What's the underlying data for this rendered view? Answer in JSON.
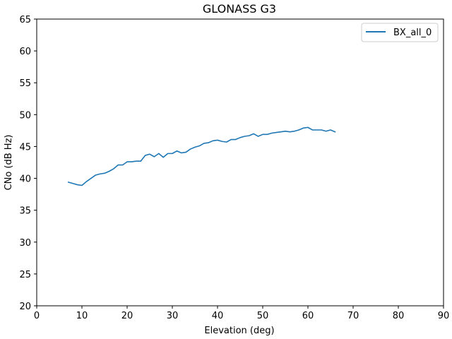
{
  "chart_data": {
    "type": "line",
    "title": "GLONASS G3",
    "xlabel": "Elevation (deg)",
    "ylabel": "CNo (dB Hz)",
    "xlim": [
      0,
      90
    ],
    "ylim": [
      20,
      65
    ],
    "xticks": [
      0,
      10,
      20,
      30,
      40,
      50,
      60,
      70,
      80,
      90
    ],
    "yticks": [
      20,
      25,
      30,
      35,
      40,
      45,
      50,
      55,
      60,
      65
    ],
    "grid": false,
    "legend_position": "top-right",
    "series": [
      {
        "name": "BX_all_0",
        "color": "#1f77b4",
        "x": [
          7,
          8,
          9,
          10,
          11,
          12,
          13,
          14,
          15,
          16,
          17,
          18,
          19,
          20,
          21,
          22,
          23,
          24,
          25,
          26,
          27,
          28,
          29,
          30,
          31,
          32,
          33,
          34,
          35,
          36,
          37,
          38,
          39,
          40,
          41,
          42,
          43,
          44,
          45,
          46,
          47,
          48,
          49,
          50,
          51,
          52,
          53,
          54,
          55,
          56,
          57,
          58,
          59,
          60,
          61,
          62,
          63,
          64,
          65,
          66
        ],
        "y": [
          39.4,
          39.2,
          39.0,
          38.9,
          39.5,
          40.0,
          40.5,
          40.7,
          40.8,
          41.1,
          41.5,
          42.1,
          42.1,
          42.6,
          42.6,
          42.7,
          42.7,
          43.6,
          43.8,
          43.4,
          43.9,
          43.3,
          43.9,
          43.9,
          44.3,
          44.0,
          44.1,
          44.6,
          44.9,
          45.1,
          45.5,
          45.6,
          45.9,
          46.0,
          45.8,
          45.7,
          46.1,
          46.1,
          46.4,
          46.6,
          46.7,
          47.0,
          46.6,
          46.9,
          46.9,
          47.1,
          47.2,
          47.3,
          47.4,
          47.3,
          47.4,
          47.6,
          47.9,
          48.0,
          47.6,
          47.6,
          47.6,
          47.4,
          47.6,
          47.3
        ]
      }
    ]
  }
}
